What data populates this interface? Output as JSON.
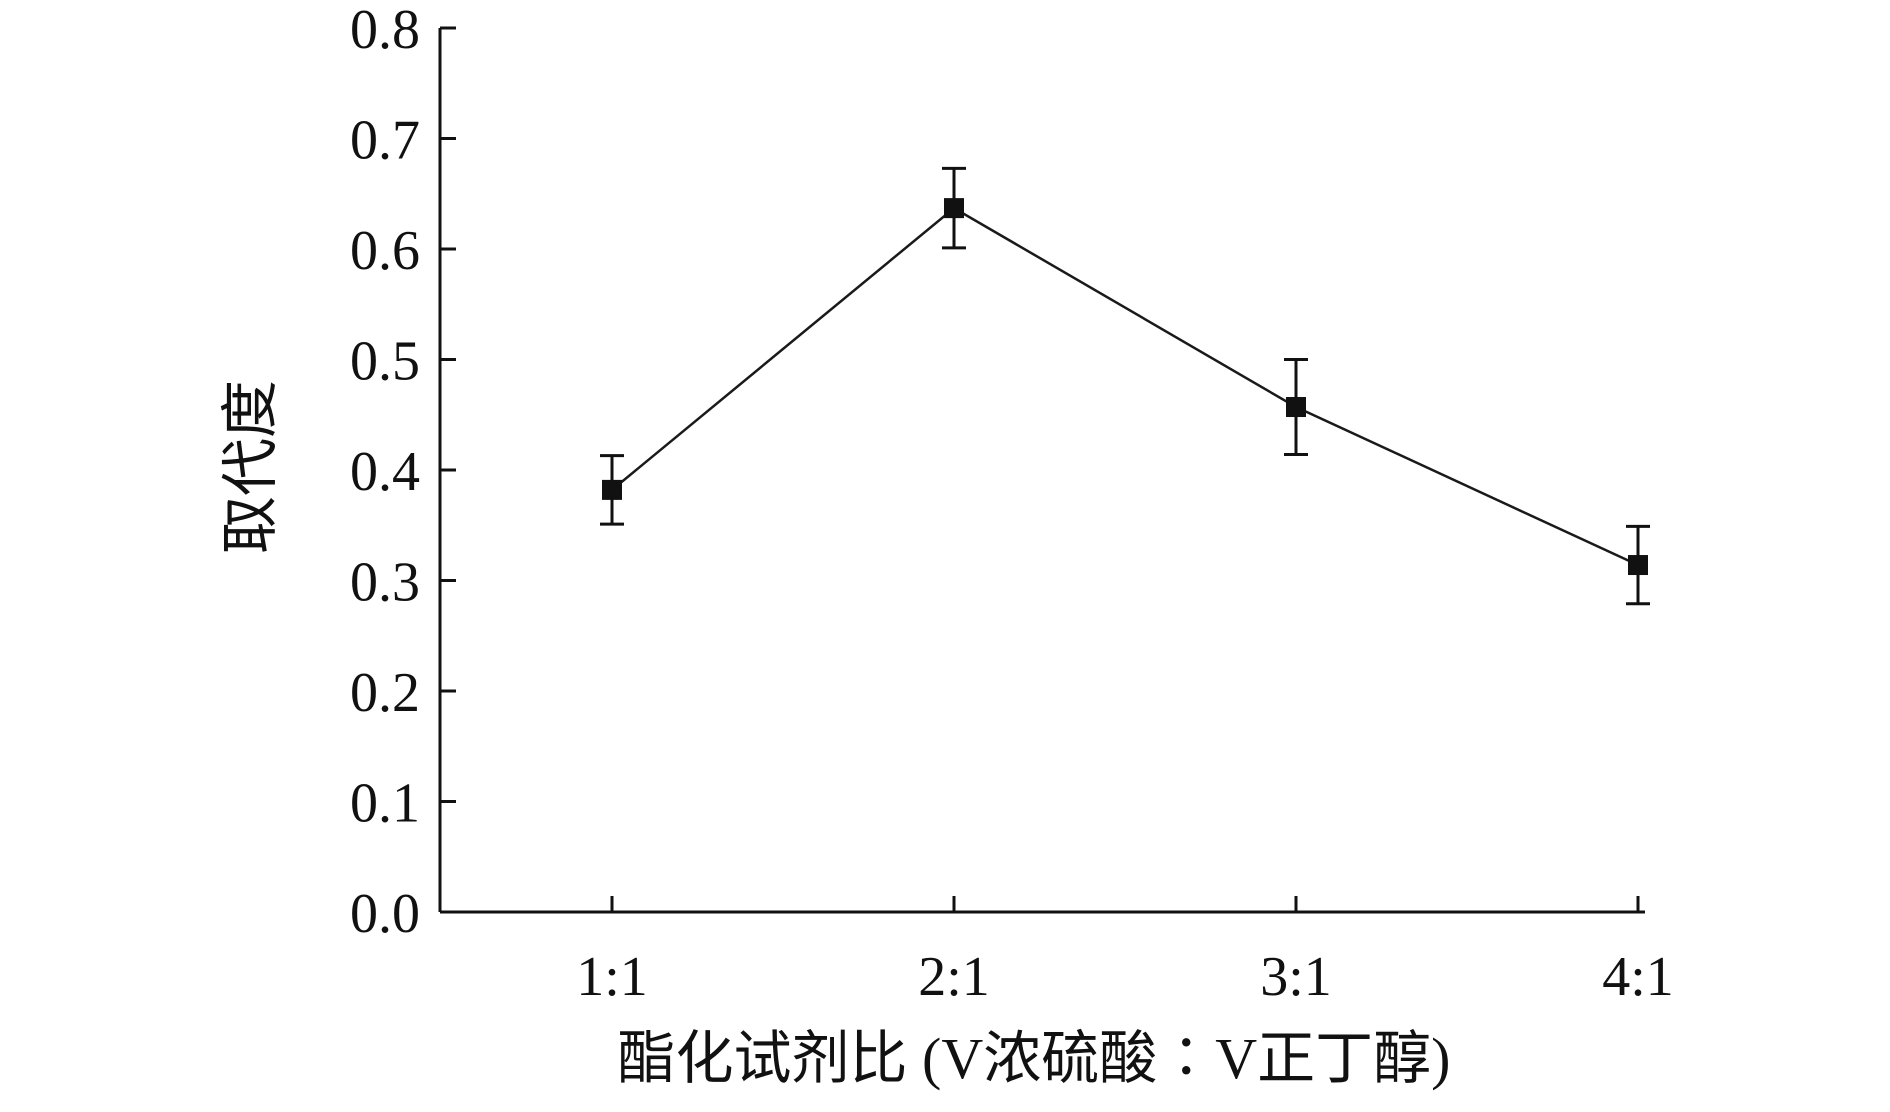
{
  "chart_data": {
    "type": "line",
    "categories": [
      "1:1",
      "2:1",
      "3:1",
      "4:1"
    ],
    "series": [
      {
        "values": [
          0.382,
          0.637,
          0.457,
          0.314
        ],
        "error": [
          0.031,
          0.036,
          0.043,
          0.035
        ]
      }
    ],
    "y_ticks": [
      "0.0",
      "0.1",
      "0.2",
      "0.3",
      "0.4",
      "0.5",
      "0.6",
      "0.7",
      "0.8"
    ],
    "ylim": [
      0,
      0.8
    ],
    "xlabel": "酯化试剂比 (V浓硫酸∶V正丁醇)",
    "ylabel": "取代度",
    "grid": false,
    "marker": "square",
    "colors": {
      "line": "#1a1a1a",
      "axis": "#111111",
      "marker": "#111111"
    }
  }
}
